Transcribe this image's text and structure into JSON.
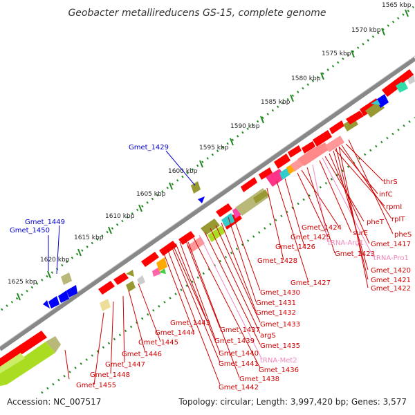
{
  "title": "Geobacter metallireducens GS-15, complete genome",
  "footer": {
    "accession": "Accession: NC_007517",
    "summary": "Topology: circular; Length: 3,997,420 bp; Genes: 3,577"
  },
  "kbp_ticks": [
    {
      "label": "1565 kbp"
    },
    {
      "label": "1570 kbp"
    },
    {
      "label": "1575 kbp"
    },
    {
      "label": "1580 kbp"
    },
    {
      "label": "1585 kbp"
    },
    {
      "label": "1590 kbp"
    },
    {
      "label": "1595 kbp"
    },
    {
      "label": "1600 kbp"
    },
    {
      "label": "1605 kbp"
    },
    {
      "label": "1610 kbp"
    },
    {
      "label": "1615 kbp"
    },
    {
      "label": "1620 kbp"
    },
    {
      "label": "1625 kbp"
    }
  ],
  "colors": {
    "gene_red": "#ff0000",
    "label_red": "#cc0000",
    "label_blue": "#0000cc",
    "label_pink": "#ee88bb",
    "backbone": "#888888",
    "dots": "#228822"
  },
  "gene_labels": [
    {
      "text": "Gmet_1429",
      "color": "blue"
    },
    {
      "text": "Gmet_1449",
      "color": "blue"
    },
    {
      "text": "Gmet_1450",
      "color": "blue"
    },
    {
      "text": "thrS",
      "color": "red"
    },
    {
      "text": "infC",
      "color": "red"
    },
    {
      "text": "rpmI",
      "color": "red"
    },
    {
      "text": "rplT",
      "color": "red"
    },
    {
      "text": "pheT",
      "color": "red"
    },
    {
      "text": "pheS",
      "color": "red"
    },
    {
      "text": "Gmet_1424",
      "color": "red"
    },
    {
      "text": "surE",
      "color": "red"
    },
    {
      "text": "Gmet_1425",
      "color": "red"
    },
    {
      "text": "tRNA-Arg1",
      "color": "pink"
    },
    {
      "text": "Gmet_1417",
      "color": "red"
    },
    {
      "text": "Gmet_1426",
      "color": "red"
    },
    {
      "text": "Gmet_1423",
      "color": "red"
    },
    {
      "text": "tRNA-Pro1",
      "color": "pink"
    },
    {
      "text": "Gmet_1428",
      "color": "red"
    },
    {
      "text": "Gmet_1420",
      "color": "red"
    },
    {
      "text": "Gmet_1421",
      "color": "red"
    },
    {
      "text": "Gmet_1427",
      "color": "red"
    },
    {
      "text": "Gmet_1422",
      "color": "red"
    },
    {
      "text": "Gmet_1430",
      "color": "red"
    },
    {
      "text": "Gmet_1431",
      "color": "red"
    },
    {
      "text": "Gmet_1432",
      "color": "red"
    },
    {
      "text": "Gmet_1443",
      "color": "red"
    },
    {
      "text": "Gmet_1433",
      "color": "red"
    },
    {
      "text": "Gmet_1444",
      "color": "red"
    },
    {
      "text": "Gmet_1437",
      "color": "red"
    },
    {
      "text": "argS",
      "color": "red"
    },
    {
      "text": "Gmet_1445",
      "color": "red"
    },
    {
      "text": "Gmet_1439",
      "color": "red"
    },
    {
      "text": "Gmet_1435",
      "color": "red"
    },
    {
      "text": "Gmet_1446",
      "color": "red"
    },
    {
      "text": "Gmet_1440",
      "color": "red"
    },
    {
      "text": "tRNA-Met2",
      "color": "pink"
    },
    {
      "text": "Gmet_1441",
      "color": "red"
    },
    {
      "text": "Gmet_1436",
      "color": "red"
    },
    {
      "text": "Gmet_1447",
      "color": "red"
    },
    {
      "text": "Gmet_1438",
      "color": "red"
    },
    {
      "text": "Gmet_1442",
      "color": "red"
    },
    {
      "text": "Gmet_1448",
      "color": "red"
    },
    {
      "text": "Gmet_1455",
      "color": "red"
    }
  ]
}
